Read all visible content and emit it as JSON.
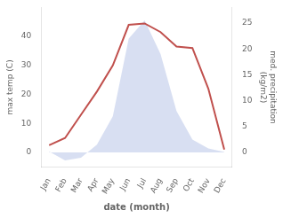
{
  "chart_data": {
    "type": "line",
    "categories": [
      "Jan",
      "Feb",
      "Mar",
      "Apr",
      "May",
      "Jun",
      "Jul",
      "Aug",
      "Sep",
      "Oct",
      "Nov",
      "Dec"
    ],
    "series": [
      {
        "name": "med. precipitation",
        "type": "area",
        "axis": "y2",
        "color": "#b8c4e8",
        "values": [
          0.2,
          -1.5,
          -1.0,
          1.5,
          7.0,
          22.0,
          25.5,
          19.0,
          8.0,
          2.5,
          0.8,
          0.1
        ]
      },
      {
        "name": "max temp",
        "type": "line",
        "color": "#c0504d",
        "values": [
          2.5,
          5.0,
          13.0,
          21.0,
          30.0,
          44.0,
          44.5,
          41.5,
          36.5,
          36.0,
          22.0,
          1.0
        ]
      }
    ],
    "x_label": "date (month)",
    "y_label": "max temp (C)",
    "y2_label": "med. precipitation\n(kg/m2)",
    "ylim": [
      -5,
      50
    ],
    "yticks": [
      0,
      10,
      20,
      30,
      40
    ],
    "y2lim": [
      -2.8,
      28
    ],
    "y2ticks": [
      0,
      5,
      10,
      15,
      20,
      25
    ],
    "grid": false
  }
}
